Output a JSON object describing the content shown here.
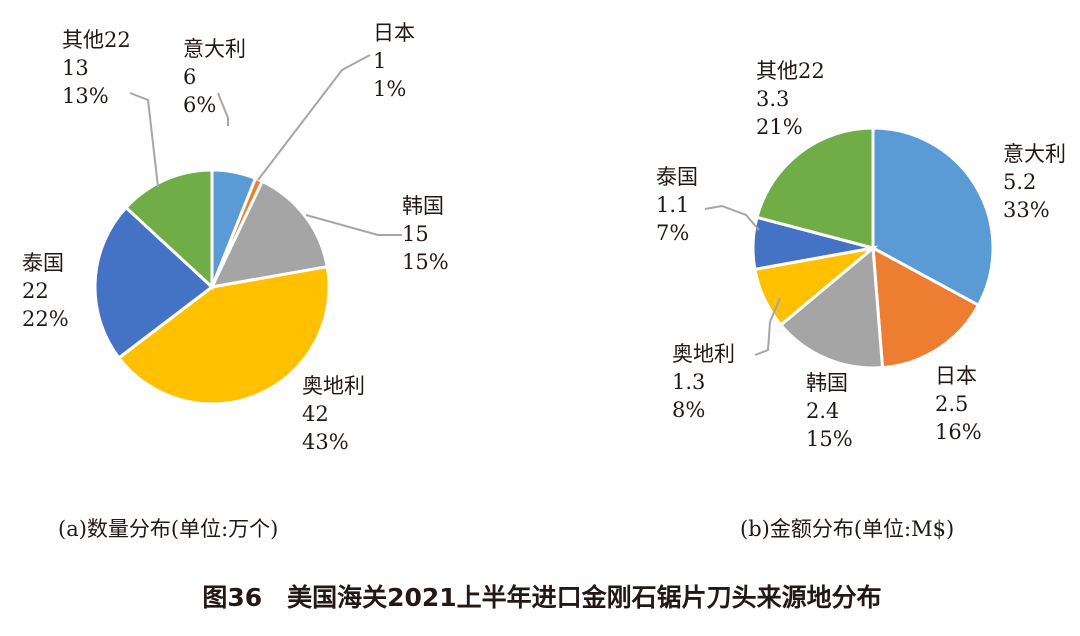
{
  "figure_title": "图36　美国海关2021上半年进口金刚石锯片刀头来源地分布",
  "chart_data": [
    {
      "type": "pie",
      "caption": "(a)数量分布(单位:万个)",
      "categories": [
        "意大利",
        "日本",
        "韩国",
        "奥地利",
        "泰国",
        "其他22"
      ],
      "values": [
        "6",
        "1",
        "15",
        "42",
        "22",
        "13"
      ],
      "percents": [
        "6%",
        "1%",
        "15%",
        "43%",
        "22%",
        "13%"
      ],
      "colors": [
        "#5b9bd5",
        "#ed7d31",
        "#a5a5a5",
        "#ffc000",
        "#4472c4",
        "#70ad47"
      ]
    },
    {
      "type": "pie",
      "caption": "(b)金额分布(单位:M$)",
      "categories": [
        "意大利",
        "日本",
        "韩国",
        "奥地利",
        "泰国",
        "其他22"
      ],
      "values": [
        "5.2",
        "2.5",
        "2.4",
        "1.3",
        "1.1",
        "3.3"
      ],
      "percents": [
        "33%",
        "16%",
        "15%",
        "8%",
        "7%",
        "21%"
      ],
      "colors": [
        "#5b9bd5",
        "#ed7d31",
        "#a5a5a5",
        "#ffc000",
        "#4472c4",
        "#70ad47"
      ]
    }
  ]
}
